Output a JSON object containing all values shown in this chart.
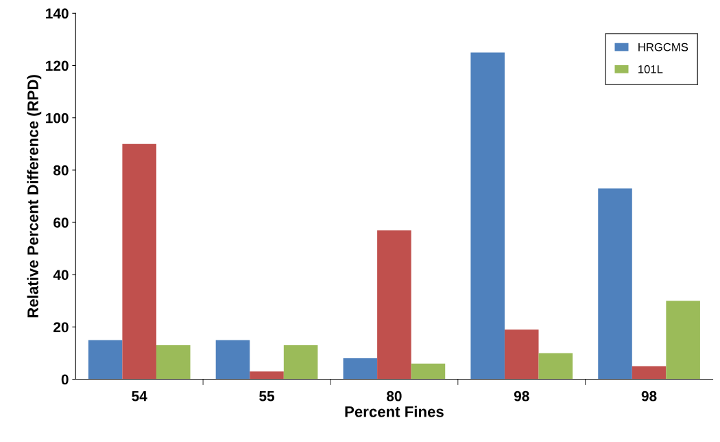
{
  "chart_data": {
    "type": "bar",
    "xlabel": "Percent Fines",
    "ylabel": "Relative Percent Difference (RPD)",
    "categories": [
      "54",
      "55",
      "80",
      "98",
      "98"
    ],
    "series": [
      {
        "name": "HRGCMS",
        "color": "#4f81bd",
        "values": [
          15,
          15,
          8,
          125,
          73
        ]
      },
      {
        "color": "#c0504d",
        "values": [
          90,
          3,
          57,
          19,
          5
        ]
      },
      {
        "name": "101L",
        "color": "#9bbb59",
        "values": [
          13,
          13,
          6,
          10,
          30
        ]
      }
    ],
    "ylim": [
      0,
      140
    ],
    "yticks": [
      0,
      20,
      40,
      60,
      80,
      100,
      120,
      140
    ],
    "grid": false,
    "legend": "top right"
  }
}
